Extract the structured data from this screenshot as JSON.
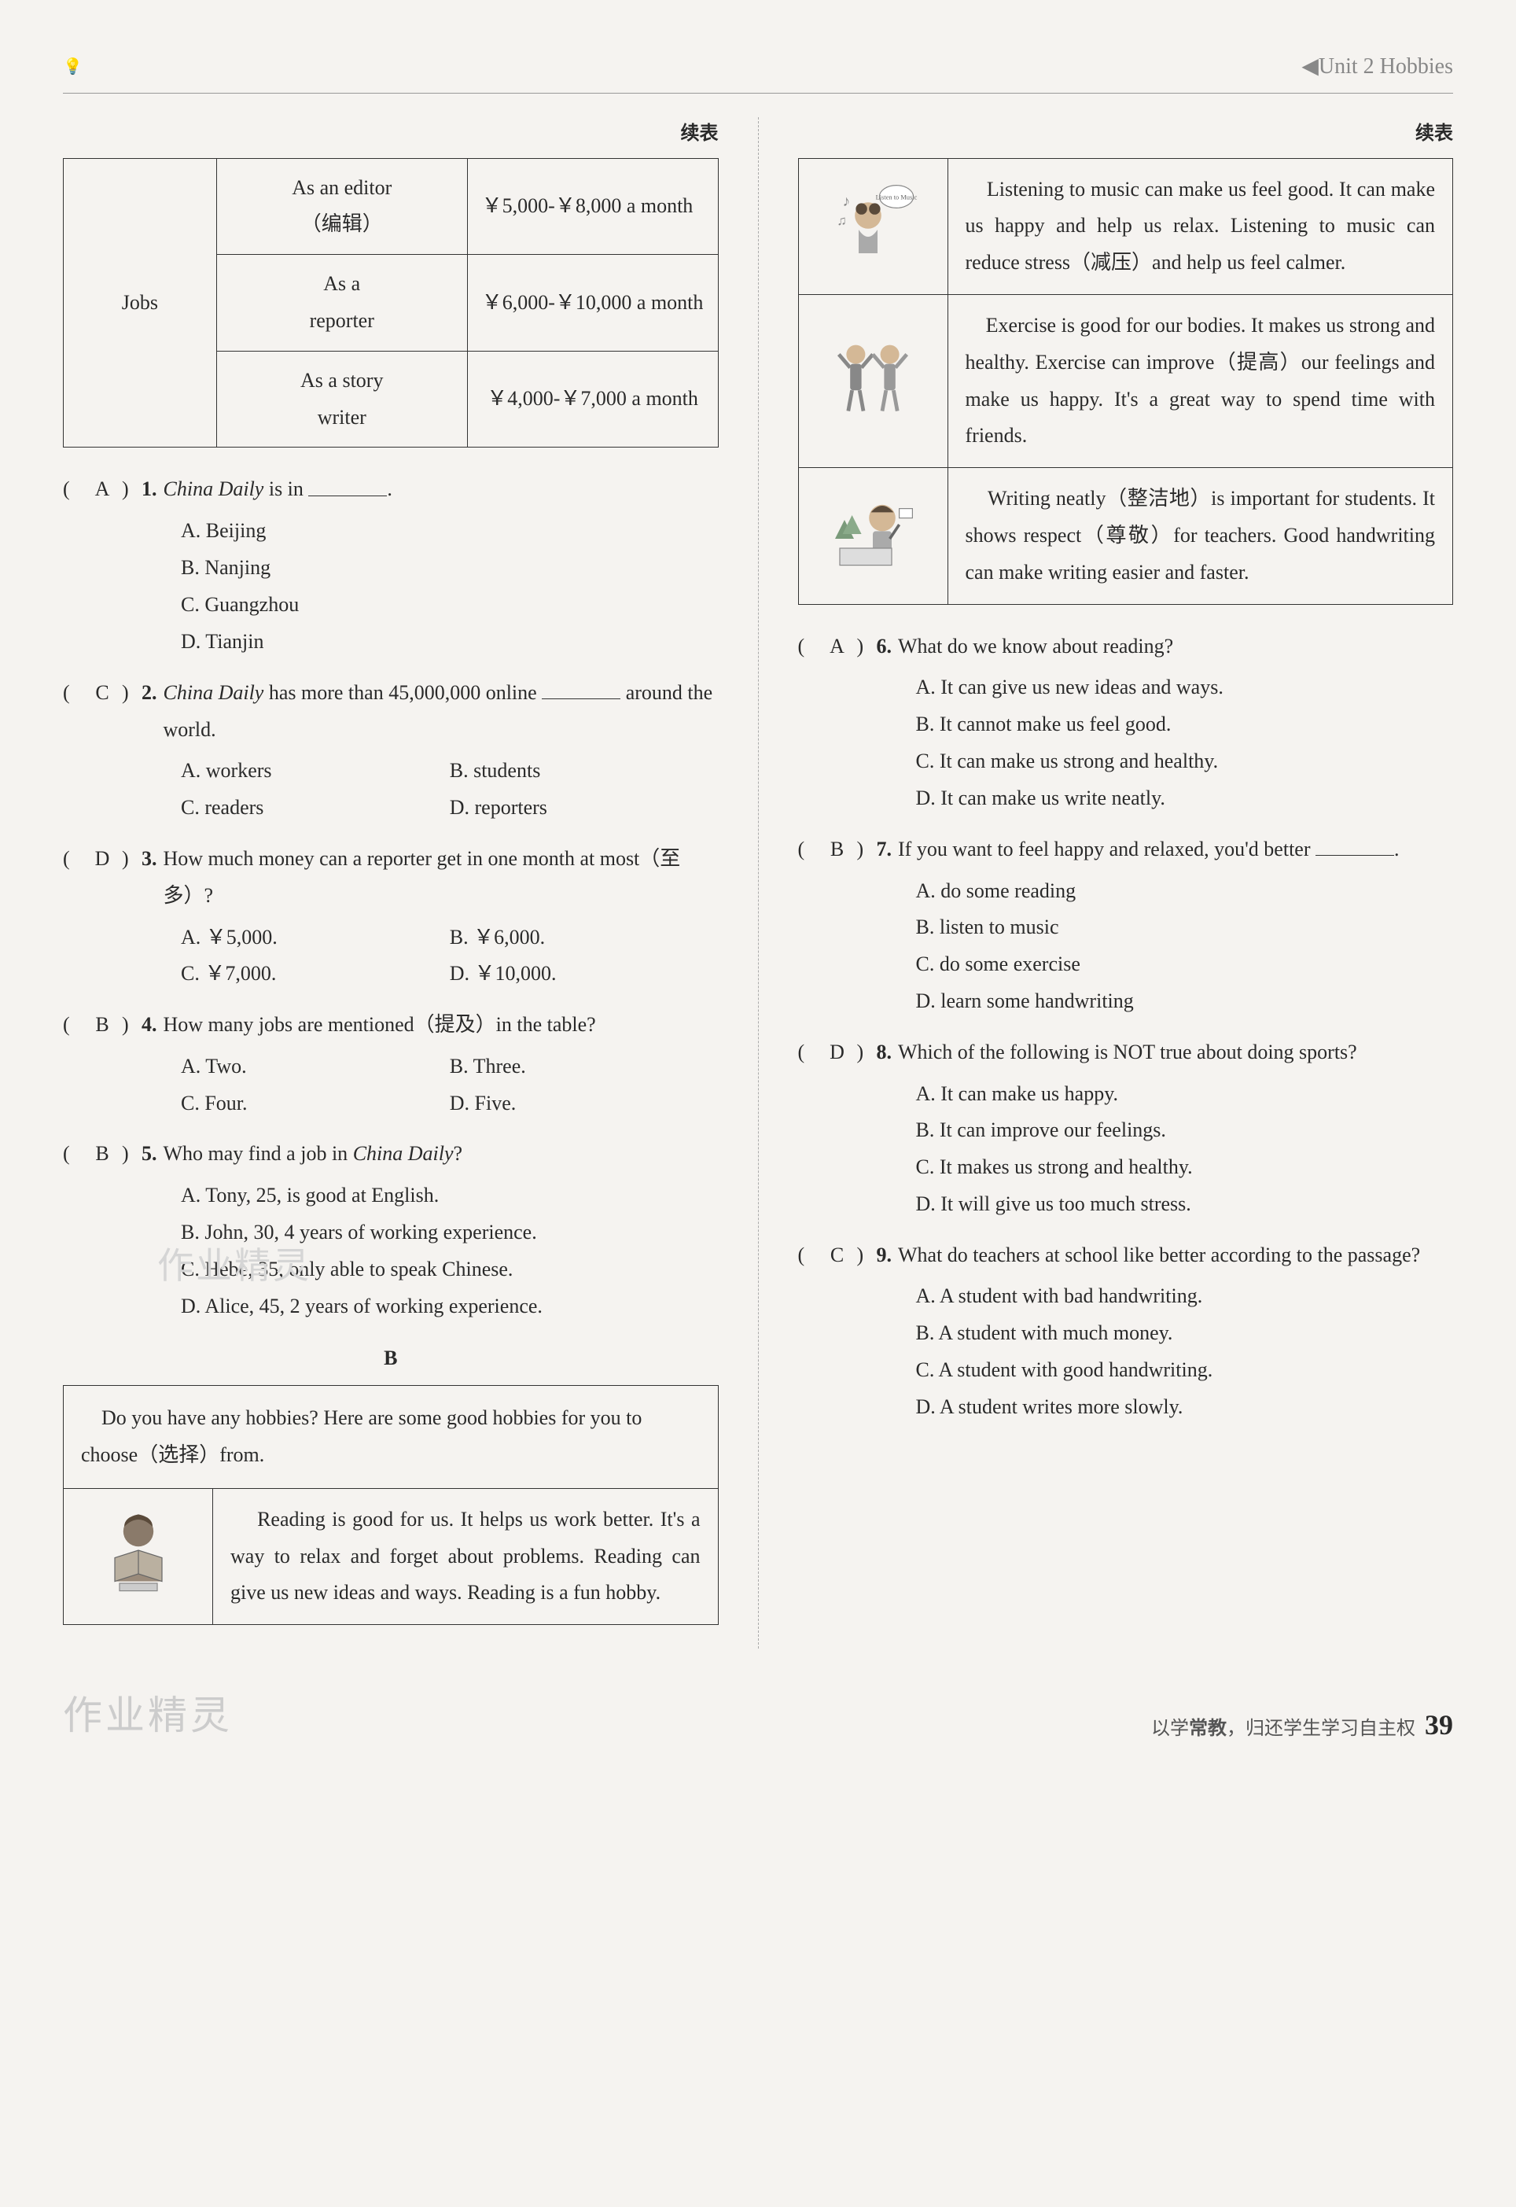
{
  "header": {
    "unit": "◀Unit 2  Hobbies"
  },
  "continued": "续表",
  "jobsTable": {
    "label": "Jobs",
    "rows": [
      {
        "role": "As an editor<br>（编辑）",
        "salary": "￥5,000-￥8,000 a month"
      },
      {
        "role": "As a<br>reporter",
        "salary": "￥6,000-￥10,000 a month"
      },
      {
        "role": "As a story<br>writer",
        "salary": "￥4,000-￥7,000 a month"
      }
    ]
  },
  "questions": [
    {
      "num": "1.",
      "answer": "A",
      "text": "<span class='italic'>China Daily</span> is in <span class='blank'></span>.",
      "options": [
        "A. Beijing",
        "B. Nanjing",
        "C. Guangzhou",
        "D. Tianjin"
      ],
      "layout": "1col"
    },
    {
      "num": "2.",
      "answer": "C",
      "text": "<span class='italic'>China Daily</span> has more than 45,000,000 online <span class='blank'></span> around the world.",
      "options": [
        "A. workers",
        "B. students",
        "C. readers",
        "D. reporters"
      ],
      "layout": "2col"
    },
    {
      "num": "3.",
      "answer": "D",
      "text": "How much money can a reporter get in one month at most（至多）?",
      "options": [
        "A. ￥5,000.",
        "B. ￥6,000.",
        "C. ￥7,000.",
        "D. ￥10,000."
      ],
      "layout": "2col"
    },
    {
      "num": "4.",
      "answer": "B",
      "text": "How many jobs are mentioned（提及）in the table?",
      "options": [
        "A. Two.",
        "B. Three.",
        "C. Four.",
        "D. Five."
      ],
      "layout": "2col"
    },
    {
      "num": "5.",
      "answer": "B",
      "text": "Who may find a job in <span class='italic'>China Daily</span>?",
      "options": [
        "A. Tony, 25, is good at English.",
        "B. John, 30, 4 years of working experience.",
        "C. Hebe, 35, only able to speak Chinese.",
        "D. Alice, 45, 2 years of working experience."
      ],
      "layout": "1col"
    }
  ],
  "sectionB": "B",
  "passageIntro": "Do you have any hobbies? Here are some good hobbies for you to choose（选择）from.",
  "hobbies": [
    {
      "icon": "reading-girl",
      "text": "Reading is good for us. It helps us work better. It's a way to relax and forget about problems. Reading can give us new ideas and ways. Reading is a fun hobby."
    },
    {
      "icon": "music-girl",
      "text": "Listening to music can make us feel good. It can make us happy and help us relax. Listening to music can reduce stress（减压）and help us feel calmer."
    },
    {
      "icon": "exercise-kids",
      "text": "Exercise is good for our bodies. It makes us strong and healthy. Exercise can improve（提高）our feelings and make us happy. It's a great way to spend time with friends."
    },
    {
      "icon": "writing-girl",
      "text": "Writing neatly（整洁地）is important for students. It shows respect（尊敬）for teachers. Good handwriting can make writing easier and faster."
    }
  ],
  "questions2": [
    {
      "num": "6.",
      "answer": "A",
      "text": "What do we know about reading?",
      "options": [
        "A. It can give us new ideas and ways.",
        "B. It cannot make us feel good.",
        "C. It can make us strong and healthy.",
        "D. It can make us write neatly."
      ]
    },
    {
      "num": "7.",
      "answer": "B",
      "text": "If you want to feel happy and relaxed, you'd better <span class='blank'></span>.",
      "options": [
        "A. do some reading",
        "B. listen to music",
        "C. do some exercise",
        "D. learn some handwriting"
      ]
    },
    {
      "num": "8.",
      "answer": "D",
      "text": "Which of the following is NOT true about doing sports?",
      "options": [
        "A. It can make us happy.",
        "B. It can improve our feelings.",
        "C. It makes us strong and healthy.",
        "D. It will give us too much stress."
      ]
    },
    {
      "num": "9.",
      "answer": "C",
      "text": "What do teachers at school like better according to the passage?",
      "options": [
        "A. A student with bad handwriting.",
        "B. A student with much money.",
        "C. A student with good handwriting.",
        "D. A student writes more slowly."
      ]
    }
  ],
  "footer": {
    "watermark": "作业精灵",
    "slogan_pre": "以学",
    "slogan_bold": "常教",
    "slogan_post": "，归还学生学习自主权",
    "pageNum": "39"
  }
}
